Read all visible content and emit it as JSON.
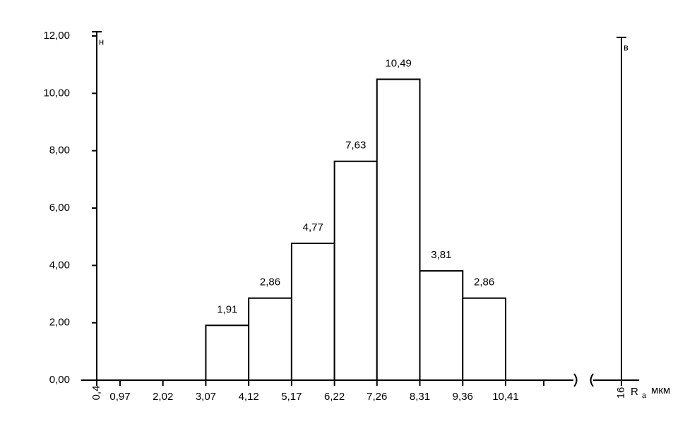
{
  "chart_data": {
    "type": "histogram",
    "bins": [
      3.07,
      4.12,
      5.17,
      6.22,
      7.26,
      8.31,
      9.36,
      10.41
    ],
    "values": [
      1.91,
      2.86,
      4.77,
      7.63,
      10.49,
      3.81,
      2.86
    ],
    "value_labels": [
      "1,91",
      "2,86",
      "4,77",
      "7,63",
      "10,49",
      "3,81",
      "2,86"
    ],
    "ylim": [
      0,
      12
    ],
    "yticks": [
      {
        "value": 0,
        "label": "0,00"
      },
      {
        "value": 2,
        "label": "2,00"
      },
      {
        "value": 4,
        "label": "4,00"
      },
      {
        "value": 6,
        "label": "6,00"
      },
      {
        "value": 8,
        "label": "8,00"
      },
      {
        "value": 10,
        "label": "10,00"
      },
      {
        "value": 12,
        "label": "12,00"
      }
    ],
    "xlim": [
      0.4,
      16
    ],
    "xticks": [
      {
        "value": 0.4,
        "label": "0,4"
      },
      {
        "value": 0.97,
        "label": "0,97"
      },
      {
        "value": 2.02,
        "label": "2,02"
      },
      {
        "value": 3.07,
        "label": "3,07"
      },
      {
        "value": 4.12,
        "label": "4,12"
      },
      {
        "value": 5.17,
        "label": "5,17"
      },
      {
        "value": 6.22,
        "label": "6,22"
      },
      {
        "value": 7.26,
        "label": "7,26"
      },
      {
        "value": 8.31,
        "label": "8,31"
      },
      {
        "value": 9.36,
        "label": "9,36"
      },
      {
        "value": 10.41,
        "label": "10,41"
      },
      {
        "value": 16,
        "label": "16"
      }
    ],
    "limits": [
      {
        "label": "н",
        "value": 0.4
      },
      {
        "label": "в",
        "value": 16
      }
    ],
    "x_label": "R",
    "x_label_sub": "а",
    "x_unit": "мкм",
    "color": "#ffffff"
  }
}
